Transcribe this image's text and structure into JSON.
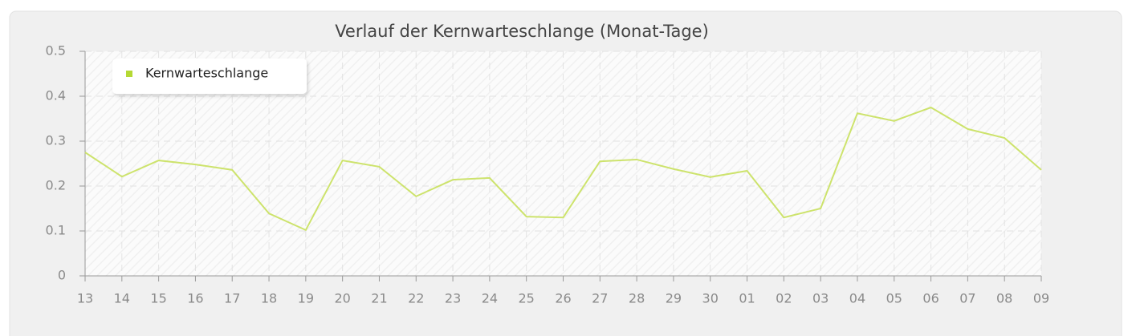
{
  "chart_data": {
    "type": "line",
    "title": "Verlauf der Kernwarteschlange (Monat-Tage)",
    "categories": [
      "13",
      "14",
      "15",
      "16",
      "17",
      "18",
      "19",
      "20",
      "21",
      "22",
      "23",
      "24",
      "25",
      "26",
      "27",
      "28",
      "29",
      "30",
      "01",
      "02",
      "03",
      "04",
      "05",
      "06",
      "07",
      "08",
      "09"
    ],
    "series": [
      {
        "name": "Kernwarteschlange",
        "color": "#cde36c",
        "values": [
          0.275,
          0.221,
          0.257,
          0.248,
          0.236,
          0.139,
          0.102,
          0.257,
          0.243,
          0.177,
          0.214,
          0.218,
          0.132,
          0.13,
          0.255,
          0.259,
          0.238,
          0.22,
          0.234,
          0.13,
          0.15,
          0.362,
          0.345,
          0.375,
          0.327,
          0.307,
          0.236
        ]
      }
    ],
    "legend_marker_color": "#b5d934",
    "ylim": [
      0,
      0.5
    ],
    "yticks": [
      0,
      0.1,
      0.2,
      0.3,
      0.4,
      0.5
    ],
    "grid": true,
    "legend": "upper left"
  }
}
